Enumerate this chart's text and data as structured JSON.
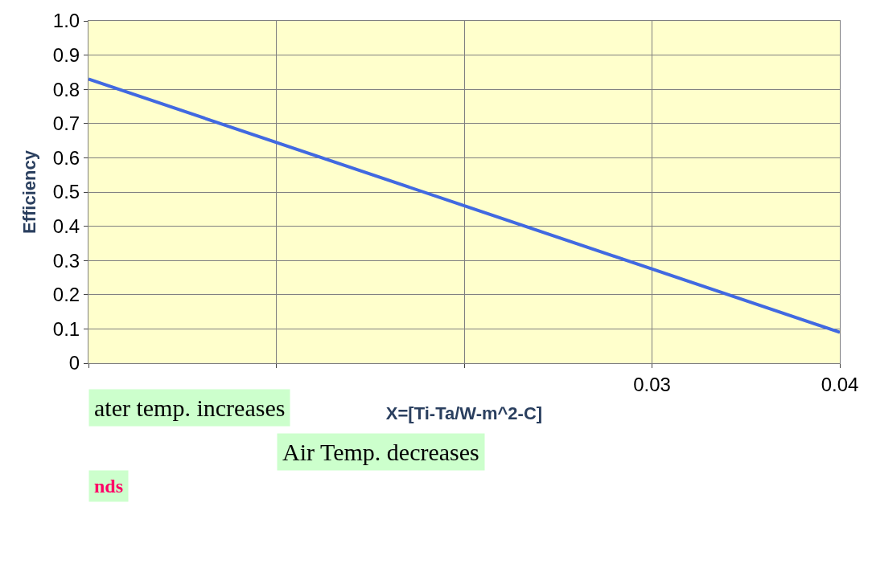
{
  "chart_data": {
    "type": "line",
    "xlabel": "X=[Ti-Ta/W-m^2-C]",
    "ylabel": "Efficiency",
    "x": [
      0,
      0.04
    ],
    "series": [
      {
        "color": "#4169e1",
        "values": [
          0.83,
          0.09
        ]
      }
    ],
    "xlim": [
      0,
      0.04
    ],
    "ylim": [
      0,
      1.0
    ],
    "xticks": [
      {
        "value": 0,
        "label": null
      },
      {
        "value": 0.01,
        "label": null
      },
      {
        "value": 0.02,
        "label": null
      },
      0.03,
      0.04
    ],
    "yticks": [
      0,
      0.1,
      0.2,
      0.3,
      0.4,
      0.5,
      0.6,
      0.7,
      0.8,
      0.9,
      {
        "value": 1.0,
        "label": "1.0"
      }
    ],
    "grid": true,
    "legend": false,
    "marker": "none",
    "line_style": "solid",
    "annotations": [
      "ater temp. increases",
      "Air Temp. decreases",
      "nds"
    ]
  }
}
